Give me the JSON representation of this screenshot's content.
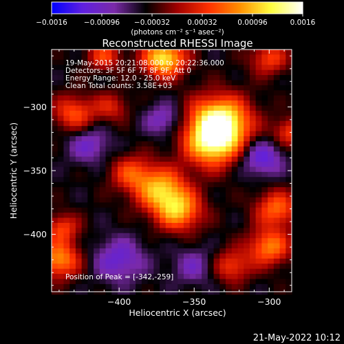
{
  "chart_data": {
    "type": "heatmap",
    "title": "Reconstructed RHESSI Image",
    "xlabel": "Heliocentric X (arcsec)",
    "ylabel": "Heliocentric Y (arcsec)",
    "xlim": [
      -445,
      -285
    ],
    "ylim": [
      -445,
      -255
    ],
    "x_ticks": [
      -400,
      -350,
      -300
    ],
    "y_ticks": [
      -300,
      -350,
      -400
    ],
    "x_tick_labels": [
      "−400",
      "−350",
      "−300"
    ],
    "y_tick_labels": [
      "−300",
      "−350",
      "−400"
    ],
    "colorbar": {
      "range": [
        -0.0016,
        0.0016
      ],
      "ticks": [
        -0.0016,
        -0.00096,
        -0.00032,
        0.00032,
        0.00096,
        0.0016
      ],
      "tick_labels": [
        "−0.0016",
        "−0.00096",
        "−0.00032",
        "0.00032",
        "0.00096",
        "0.0016"
      ],
      "unit_label": "(photons cm⁻² s⁻¹ asec⁻²)",
      "colors": [
        "#0000ff",
        "#6020e0",
        "#7a2aa8",
        "#000000",
        "#a00000",
        "#ff3000",
        "#ff9000",
        "#ffff40",
        "#ffffff"
      ]
    },
    "annotations": [
      "19-May-2015 20:21:08.000 to 20:22:36.000",
      "Detectors: 3F 5F 6F 7F 8F 9F, Att 0",
      "Energy Range: 12.0 - 25.0 keV",
      "Clean    Total counts: 3.58E+03"
    ],
    "peak_label": "Position of Peak = [-342,-259]",
    "blobs": [
      {
        "x": -333,
        "y": -312,
        "amp": 0.0019,
        "s": 14
      },
      {
        "x": -338,
        "y": -330,
        "amp": 0.0013,
        "s": 13
      },
      {
        "x": -372,
        "y": -365,
        "amp": 0.0013,
        "s": 12
      },
      {
        "x": -360,
        "y": -382,
        "amp": 0.0012,
        "s": 11
      },
      {
        "x": -392,
        "y": -352,
        "amp": 0.0008,
        "s": 10
      },
      {
        "x": -430,
        "y": -305,
        "amp": 0.0009,
        "s": 10
      },
      {
        "x": -405,
        "y": -300,
        "amp": 0.0006,
        "s": 8
      },
      {
        "x": -370,
        "y": -262,
        "amp": 0.0016,
        "s": 10
      },
      {
        "x": -410,
        "y": -260,
        "amp": 0.0008,
        "s": 8
      },
      {
        "x": -300,
        "y": -262,
        "amp": 0.0008,
        "s": 9
      },
      {
        "x": -295,
        "y": -380,
        "amp": 0.001,
        "s": 10
      },
      {
        "x": -300,
        "y": -410,
        "amp": 0.0011,
        "s": 10
      },
      {
        "x": -325,
        "y": -425,
        "amp": 0.0008,
        "s": 9
      },
      {
        "x": -440,
        "y": -420,
        "amp": 0.0012,
        "s": 10
      },
      {
        "x": -438,
        "y": -395,
        "amp": 0.0008,
        "s": 8
      },
      {
        "x": -286,
        "y": -320,
        "amp": 0.0008,
        "s": 8
      },
      {
        "x": -370,
        "y": -310,
        "amp": -0.0006,
        "s": 9
      },
      {
        "x": -305,
        "y": -340,
        "amp": -0.0008,
        "s": 10
      },
      {
        "x": -400,
        "y": -420,
        "amp": -0.0007,
        "s": 12
      },
      {
        "x": -420,
        "y": -330,
        "amp": -0.0006,
        "s": 10
      },
      {
        "x": -350,
        "y": -425,
        "amp": -0.0005,
        "s": 10
      }
    ],
    "background": -0.0004
  },
  "footer": {
    "timestamp": "21-May-2022 10:12"
  }
}
